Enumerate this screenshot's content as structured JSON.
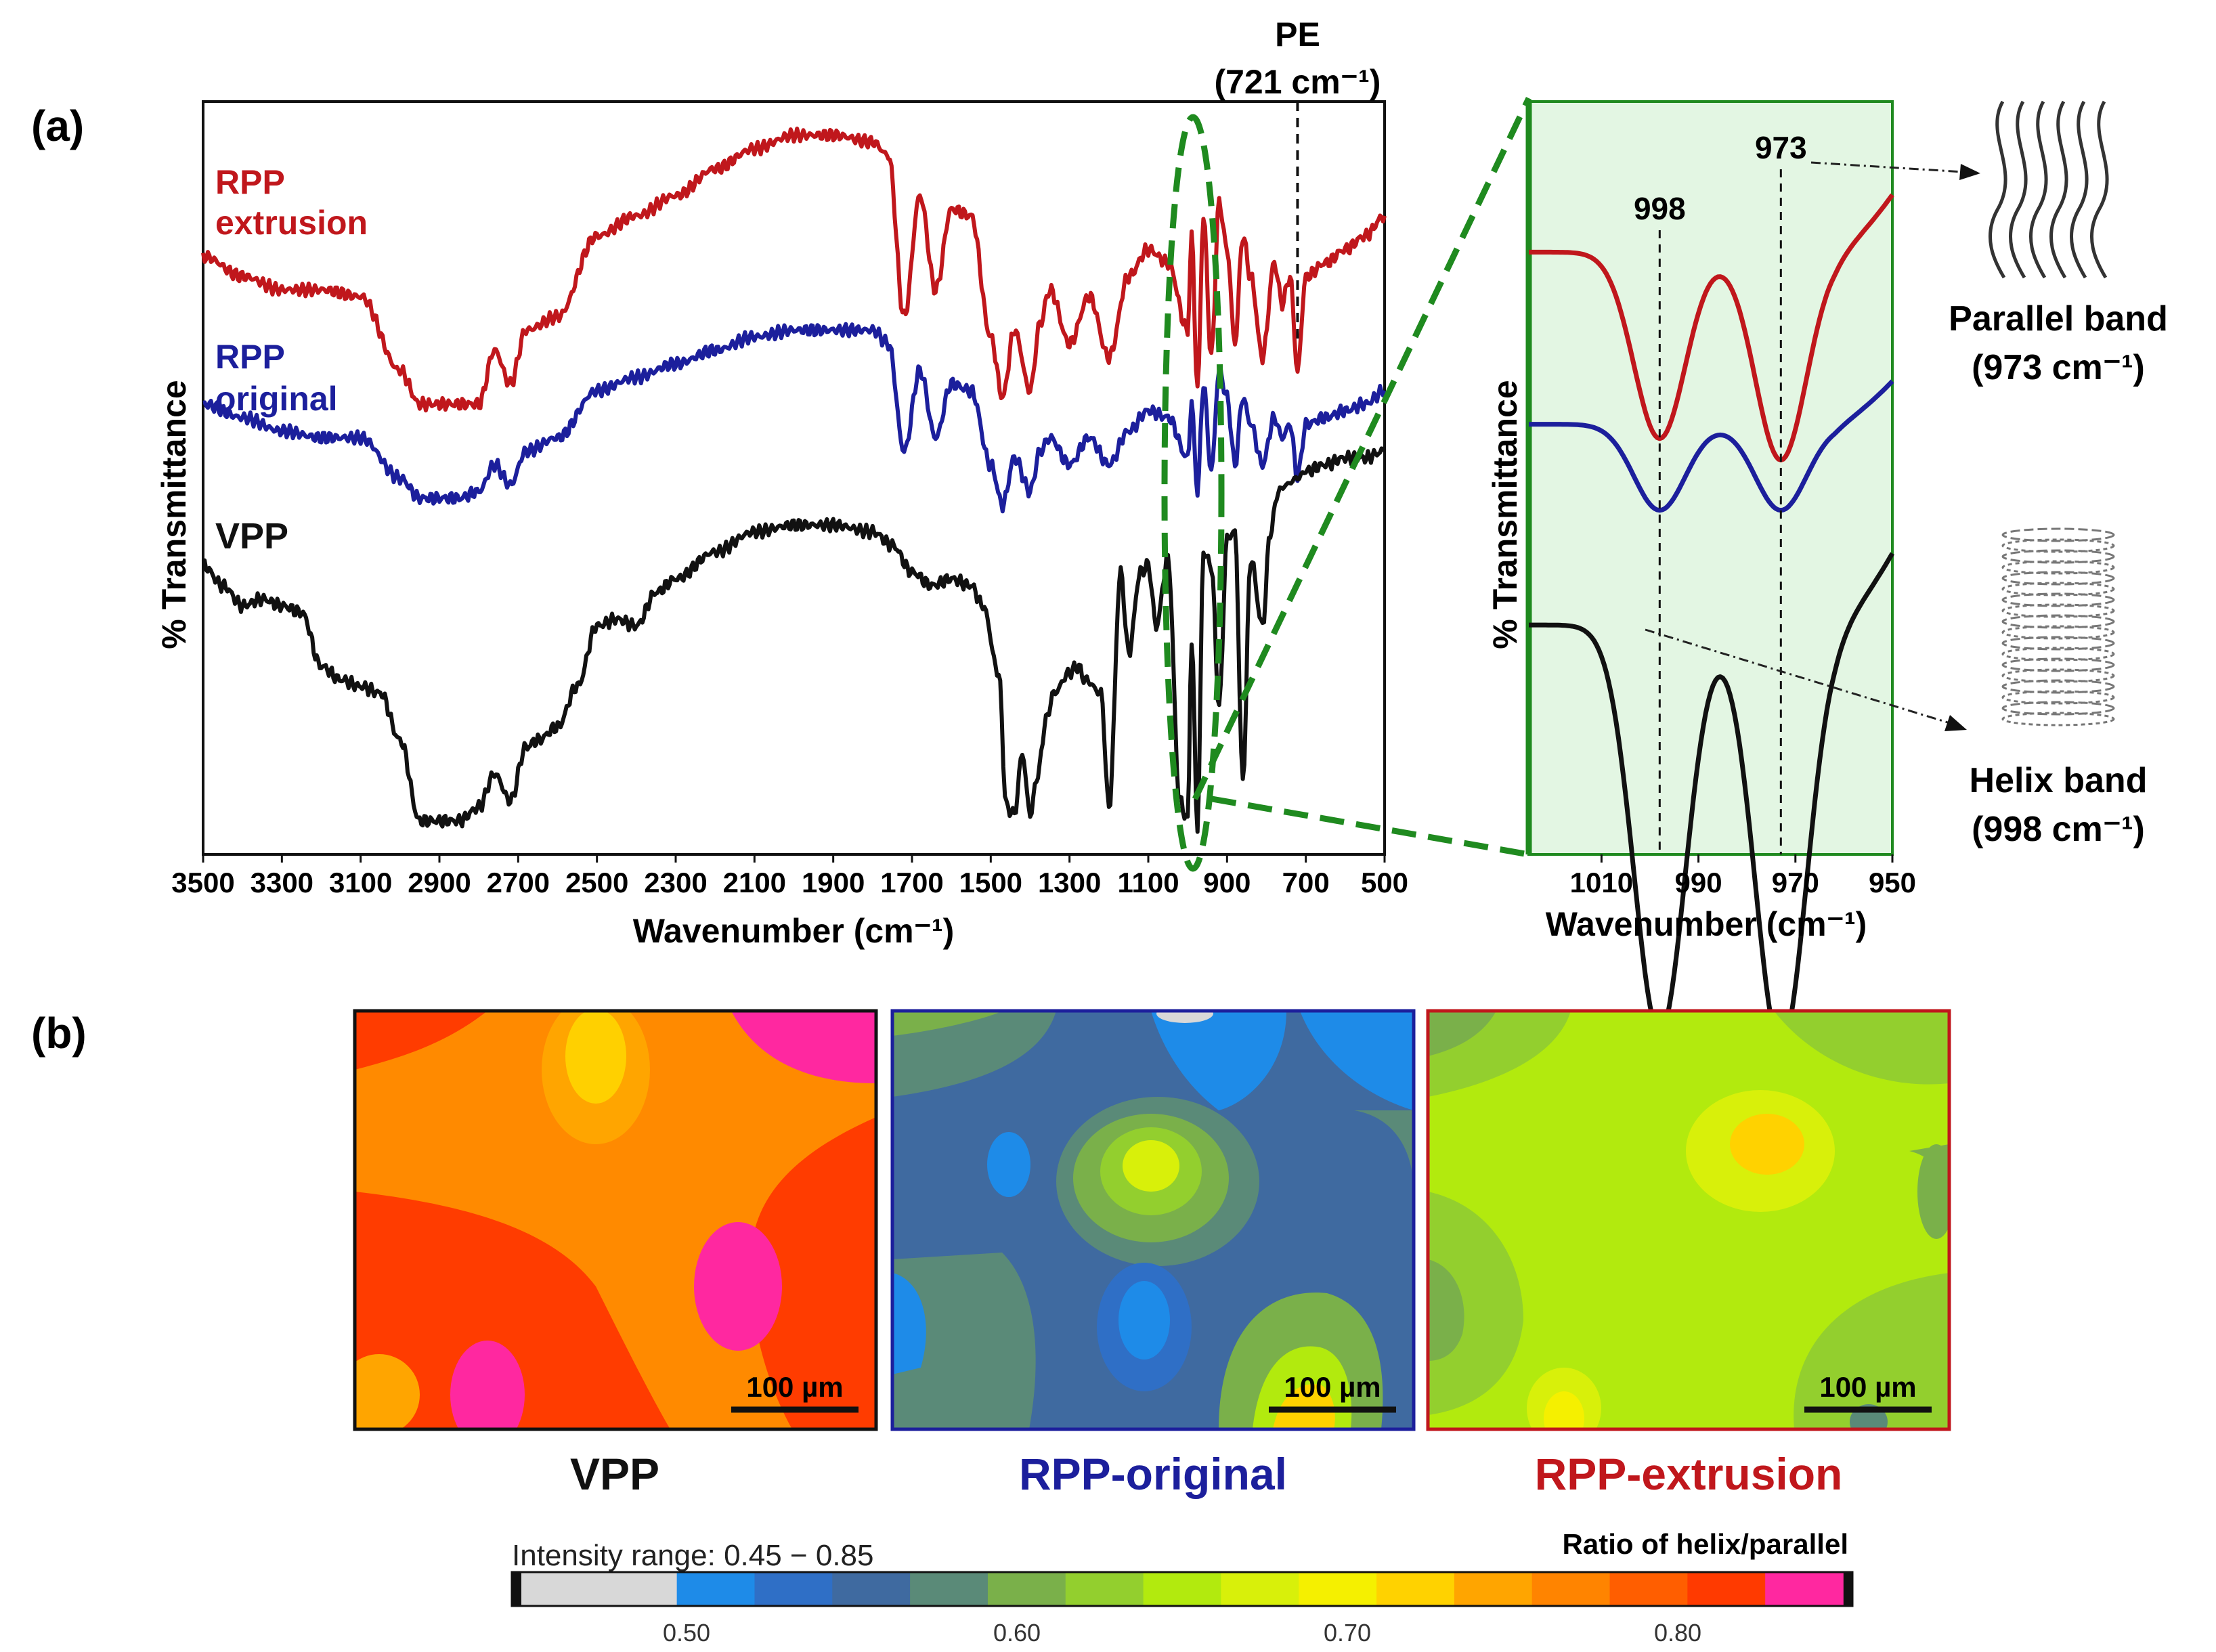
{
  "panel_labels": {
    "a": "(a)",
    "b": "(b)"
  },
  "colors": {
    "red": "#c0171c",
    "blue": "#1c1f9c",
    "black": "#111111",
    "green_zoom": "#1f8a1f",
    "zoom_fill": "#e3f6e3"
  },
  "chart_data": [
    {
      "type": "line",
      "name": "ftir_full",
      "xlabel": "Wavenumber (cm⁻¹)",
      "ylabel": "% Transmittance",
      "xlim": [
        3500,
        500
      ],
      "x_reversed": true,
      "xticks": [
        "3500",
        "3300",
        "3100",
        "2900",
        "2700",
        "2500",
        "2300",
        "2100",
        "1900",
        "1700",
        "1500",
        "1300",
        "1100",
        "900",
        "700",
        "500"
      ],
      "annotation": {
        "label": "PE",
        "sublabel": "(721 cm⁻¹)",
        "x": 721
      },
      "series": [
        {
          "name": "RPP extrusion",
          "label_line1": "RPP",
          "label_line2": "extrusion",
          "color": "#c0171c",
          "x": [
            3500,
            3400,
            3300,
            3200,
            3100,
            3000,
            2950,
            2900,
            2850,
            2800,
            2760,
            2720,
            2680,
            2600,
            2500,
            2400,
            2300,
            2200,
            2100,
            2000,
            1900,
            1800,
            1760,
            1720,
            1680,
            1640,
            1600,
            1550,
            1500,
            1470,
            1440,
            1400,
            1375,
            1350,
            1300,
            1250,
            1200,
            1150,
            1100,
            1050,
            1000,
            990,
            975,
            960,
            940,
            920,
            900,
            880,
            860,
            840,
            810,
            780,
            760,
            740,
            721,
            700,
            650,
            600,
            550,
            500
          ],
          "y": [
            0.77,
            0.74,
            0.72,
            0.72,
            0.71,
            0.6,
            0.55,
            0.55,
            0.55,
            0.55,
            0.63,
            0.58,
            0.66,
            0.68,
            0.8,
            0.83,
            0.86,
            0.9,
            0.93,
            0.95,
            0.95,
            0.94,
            0.92,
            0.68,
            0.86,
            0.72,
            0.84,
            0.83,
            0.65,
            0.56,
            0.66,
            0.57,
            0.67,
            0.72,
            0.64,
            0.71,
            0.62,
            0.74,
            0.78,
            0.76,
            0.66,
            0.8,
            0.57,
            0.83,
            0.62,
            0.85,
            0.78,
            0.64,
            0.8,
            0.74,
            0.62,
            0.76,
            0.7,
            0.74,
            0.6,
            0.74,
            0.76,
            0.78,
            0.8,
            0.83
          ]
        },
        {
          "name": "RPP original",
          "label_line1": "RPP",
          "label_line2": "original",
          "color": "#1c1f9c",
          "x": [
            3500,
            3400,
            3300,
            3200,
            3100,
            3000,
            2950,
            2900,
            2850,
            2800,
            2760,
            2720,
            2680,
            2600,
            2500,
            2400,
            2300,
            2200,
            2100,
            2000,
            1900,
            1800,
            1760,
            1720,
            1680,
            1640,
            1600,
            1550,
            1500,
            1470,
            1440,
            1400,
            1375,
            1350,
            1300,
            1250,
            1200,
            1150,
            1100,
            1050,
            1000,
            990,
            975,
            960,
            940,
            920,
            900,
            880,
            860,
            840,
            810,
            780,
            760,
            740,
            721,
            700,
            650,
            600,
            550,
            500
          ],
          "y": [
            0.55,
            0.53,
            0.51,
            0.5,
            0.5,
            0.44,
            0.41,
            0.41,
            0.41,
            0.42,
            0.46,
            0.43,
            0.48,
            0.5,
            0.57,
            0.59,
            0.61,
            0.63,
            0.65,
            0.66,
            0.66,
            0.66,
            0.64,
            0.48,
            0.6,
            0.5,
            0.58,
            0.57,
            0.46,
            0.4,
            0.47,
            0.42,
            0.48,
            0.5,
            0.46,
            0.5,
            0.46,
            0.51,
            0.54,
            0.53,
            0.47,
            0.55,
            0.42,
            0.58,
            0.45,
            0.6,
            0.56,
            0.46,
            0.56,
            0.52,
            0.46,
            0.53,
            0.5,
            0.52,
            0.44,
            0.52,
            0.53,
            0.54,
            0.55,
            0.57
          ]
        },
        {
          "name": "VPP",
          "label_line1": "VPP",
          "label_line2": "",
          "color": "#111111",
          "x": [
            3500,
            3450,
            3400,
            3350,
            3300,
            3250,
            3200,
            3150,
            3100,
            3050,
            3000,
            2950,
            2900,
            2850,
            2800,
            2760,
            2720,
            2680,
            2650,
            2600,
            2550,
            2500,
            2450,
            2400,
            2350,
            2300,
            2200,
            2100,
            2000,
            1900,
            1800,
            1750,
            1700,
            1650,
            1600,
            1550,
            1520,
            1480,
            1460,
            1440,
            1420,
            1400,
            1380,
            1360,
            1340,
            1300,
            1280,
            1260,
            1220,
            1200,
            1170,
            1150,
            1120,
            1100,
            1080,
            1050,
            1020,
            1000,
            990,
            975,
            960,
            940,
            920,
            900,
            880,
            860,
            840,
            810,
            790,
            770,
            750,
            721,
            700,
            650,
            600,
            550,
            500
          ],
          "y": [
            0.31,
            0.28,
            0.25,
            0.26,
            0.25,
            0.24,
            0.16,
            0.14,
            0.13,
            0.12,
            0.05,
            -0.07,
            -0.07,
            -0.07,
            -0.05,
            0.0,
            -0.04,
            0.04,
            0.05,
            0.07,
            0.13,
            0.22,
            0.23,
            0.22,
            0.27,
            0.29,
            0.33,
            0.36,
            0.37,
            0.37,
            0.36,
            0.34,
            0.3,
            0.28,
            0.29,
            0.28,
            0.25,
            0.15,
            -0.05,
            -0.06,
            0.03,
            -0.06,
            0.0,
            0.08,
            0.12,
            0.15,
            0.16,
            0.14,
            0.12,
            -0.05,
            0.3,
            0.18,
            0.3,
            0.31,
            0.22,
            0.32,
            -0.04,
            -0.07,
            0.2,
            -0.08,
            0.33,
            0.31,
            0.1,
            0.35,
            0.36,
            -0.01,
            0.32,
            0.22,
            0.36,
            0.42,
            0.43,
            0.44,
            0.45,
            0.46,
            0.47,
            0.47,
            0.48
          ]
        }
      ]
    },
    {
      "type": "line",
      "name": "ftir_zoom",
      "xlabel": "Wavenumber (cm⁻¹)",
      "ylabel": "% Transmittance",
      "xlim": [
        1025,
        950
      ],
      "x_reversed": true,
      "xticks": [
        "1010",
        "990",
        "970",
        "950"
      ],
      "markers": [
        {
          "label": "998",
          "x": 998
        },
        {
          "label": "973",
          "x": 973
        }
      ],
      "series": [
        {
          "name": "RPP extrusion",
          "color": "#c0171c",
          "y0": 0.8,
          "baseline": 0.72,
          "d998": 0.26,
          "d973": 0.29
        },
        {
          "name": "RPP original",
          "color": "#1c1f9c",
          "y0": 0.54,
          "baseline": 0.48,
          "d998": 0.12,
          "d973": 0.12
        },
        {
          "name": "VPP",
          "color": "#111111",
          "y0": 0.3,
          "baseline": 0.2,
          "d998": 0.57,
          "d973": 0.59
        }
      ]
    }
  ],
  "schematics": {
    "parallel": {
      "line1": "Parallel band",
      "line2": "(973 cm⁻¹)"
    },
    "helix": {
      "line1": "Helix band",
      "line2": "(998 cm⁻¹)"
    }
  },
  "maps": [
    {
      "title": "VPP",
      "title_color": "#111111",
      "border": "#111111",
      "scale_label": "100 µm",
      "palette": "vpp"
    },
    {
      "title": "RPP-original",
      "title_color": "#1c1f9c",
      "border": "#1c1f9c",
      "scale_label": "100 µm",
      "palette": "orig"
    },
    {
      "title": "RPP-extrusion",
      "title_color": "#c0171c",
      "border": "#c0171c",
      "scale_label": "100 µm",
      "palette": "ext"
    }
  ],
  "colorbar": {
    "range_label": "Intensity range: 0.45 − 0.85",
    "title": "Ratio of helix/parallel",
    "min": 0.45,
    "max": 0.85,
    "ticks": [
      "0.50",
      "0.60",
      "0.70",
      "0.80"
    ],
    "tick_values": [
      0.5,
      0.6,
      0.7,
      0.8
    ],
    "colors": [
      "#d8d8d8",
      "#d8d8d8",
      "#1e8be8",
      "#2f6fc6",
      "#3f6aa0",
      "#5a8a78",
      "#7ab04a",
      "#93cf2e",
      "#b2ea0e",
      "#d8f00a",
      "#f5f000",
      "#ffd200",
      "#ffa500",
      "#ff8400",
      "#ff5e00",
      "#ff3a00",
      "#ff28a0"
    ]
  }
}
